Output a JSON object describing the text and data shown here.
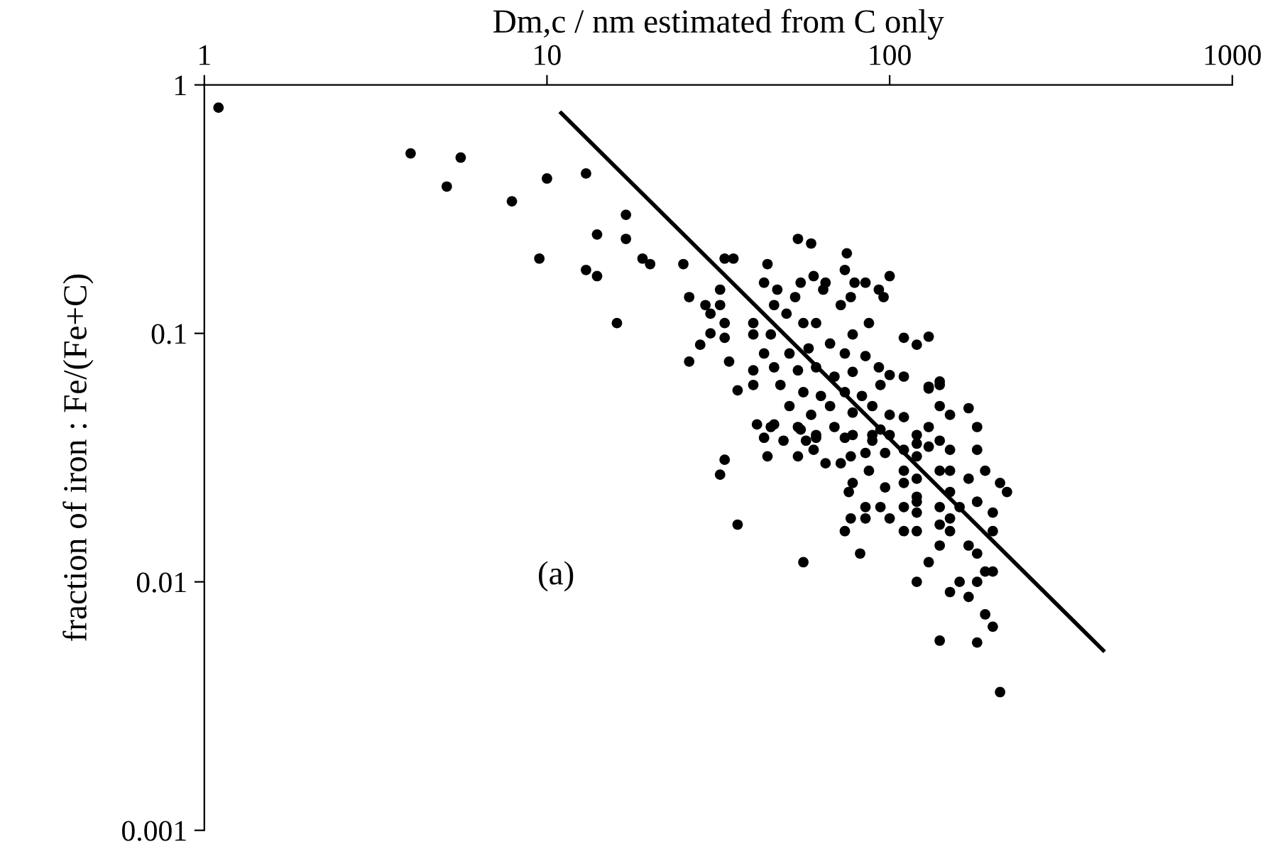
{
  "chart_data": {
    "type": "scatter",
    "xlabel": "Dm,c / nm estimated from C only",
    "ylabel": "fraction of iron : Fe/(Fe+C)",
    "annotations": [
      "(a)"
    ],
    "log": "xy",
    "grid": false,
    "legend": false,
    "marker": "circle",
    "xlim": [
      1,
      1000
    ],
    "xticks": [
      1,
      10,
      100,
      1000
    ],
    "ylim": [
      0.001,
      1
    ],
    "yticks": [
      0.001,
      0.01,
      0.1,
      1
    ],
    "series": [
      {
        "color": "#000000",
        "x": [
          1.1,
          4,
          5.1,
          5.6,
          7.9,
          10,
          13,
          17,
          14,
          17,
          9.5,
          13,
          14,
          19,
          20,
          16,
          25,
          54,
          59,
          75,
          100,
          33,
          35,
          44,
          26,
          32,
          43,
          47,
          55,
          60,
          65,
          74,
          79,
          85,
          93,
          96,
          53,
          64,
          77,
          72,
          29,
          32,
          30,
          33,
          40,
          46,
          50,
          56,
          61,
          87,
          30,
          33,
          28,
          40,
          26,
          34,
          45,
          78,
          110,
          120,
          130,
          43,
          51,
          58,
          67,
          74,
          85,
          93,
          40,
          46,
          54,
          61,
          69,
          78,
          36,
          40,
          48,
          56,
          63,
          74,
          83,
          94,
          100,
          110,
          130,
          140,
          140,
          51,
          59,
          67,
          78,
          89,
          100,
          110,
          41,
          46,
          54,
          61,
          69,
          78,
          94,
          120,
          130,
          43,
          49,
          57,
          89,
          120,
          140,
          45,
          55,
          61,
          74,
          89,
          100,
          180,
          33,
          32,
          44,
          54,
          60,
          65,
          72,
          77,
          85,
          97,
          110,
          120,
          130,
          150,
          180,
          87,
          78,
          76,
          97,
          110,
          110,
          120,
          140,
          150,
          170,
          190,
          210,
          220,
          150,
          120,
          110,
          85,
          94,
          77,
          85,
          74,
          100,
          120,
          120,
          140,
          160,
          180,
          200,
          140,
          150,
          110,
          120,
          150,
          140,
          200,
          170,
          180,
          130,
          120,
          160,
          150,
          180,
          200,
          170,
          190,
          200,
          140,
          180,
          210,
          36,
          56,
          82,
          140,
          130,
          150,
          170,
          180,
          190
        ],
        "values": [
          0.81,
          0.53,
          0.39,
          0.51,
          0.34,
          0.42,
          0.44,
          0.3,
          0.25,
          0.24,
          0.2,
          0.18,
          0.17,
          0.2,
          0.19,
          0.11,
          0.19,
          0.24,
          0.23,
          0.21,
          0.17,
          0.2,
          0.2,
          0.19,
          0.14,
          0.15,
          0.16,
          0.15,
          0.16,
          0.17,
          0.16,
          0.18,
          0.16,
          0.16,
          0.15,
          0.14,
          0.14,
          0.15,
          0.14,
          0.13,
          0.13,
          0.13,
          0.12,
          0.11,
          0.11,
          0.13,
          0.12,
          0.11,
          0.11,
          0.11,
          0.1,
          0.096,
          0.09,
          0.099,
          0.077,
          0.077,
          0.099,
          0.099,
          0.096,
          0.09,
          0.097,
          0.083,
          0.083,
          0.087,
          0.091,
          0.083,
          0.081,
          0.073,
          0.071,
          0.073,
          0.071,
          0.073,
          0.067,
          0.07,
          0.059,
          0.062,
          0.062,
          0.058,
          0.056,
          0.058,
          0.056,
          0.062,
          0.068,
          0.067,
          0.06,
          0.064,
          0.051,
          0.051,
          0.047,
          0.051,
          0.048,
          0.051,
          0.047,
          0.046,
          0.043,
          0.043,
          0.042,
          0.039,
          0.042,
          0.039,
          0.041,
          0.039,
          0.042,
          0.038,
          0.037,
          0.037,
          0.037,
          0.036,
          0.037,
          0.042,
          0.041,
          0.038,
          0.038,
          0.039,
          0.039,
          0.042,
          0.031,
          0.027,
          0.032,
          0.032,
          0.034,
          0.03,
          0.03,
          0.032,
          0.033,
          0.033,
          0.034,
          0.032,
          0.035,
          0.034,
          0.034,
          0.028,
          0.025,
          0.023,
          0.024,
          0.028,
          0.025,
          0.026,
          0.028,
          0.028,
          0.026,
          0.028,
          0.025,
          0.023,
          0.023,
          0.022,
          0.02,
          0.02,
          0.02,
          0.018,
          0.018,
          0.016,
          0.018,
          0.019,
          0.021,
          0.02,
          0.02,
          0.021,
          0.019,
          0.017,
          0.018,
          0.016,
          0.016,
          0.016,
          0.014,
          0.016,
          0.014,
          0.013,
          0.012,
          0.01,
          0.01,
          0.0091,
          0.01,
          0.011,
          0.0087,
          0.0074,
          0.0066,
          0.0058,
          0.0057,
          0.0036,
          0.017,
          0.012,
          0.013,
          0.062,
          0.061,
          0.047,
          0.05,
          0.021,
          0.011
        ]
      },
      {
        "type": "line",
        "color": "#000000",
        "marker": "none",
        "line_style": "solid",
        "x": [
          11,
          420
        ],
        "values": [
          0.77,
          0.0053
        ]
      }
    ]
  }
}
